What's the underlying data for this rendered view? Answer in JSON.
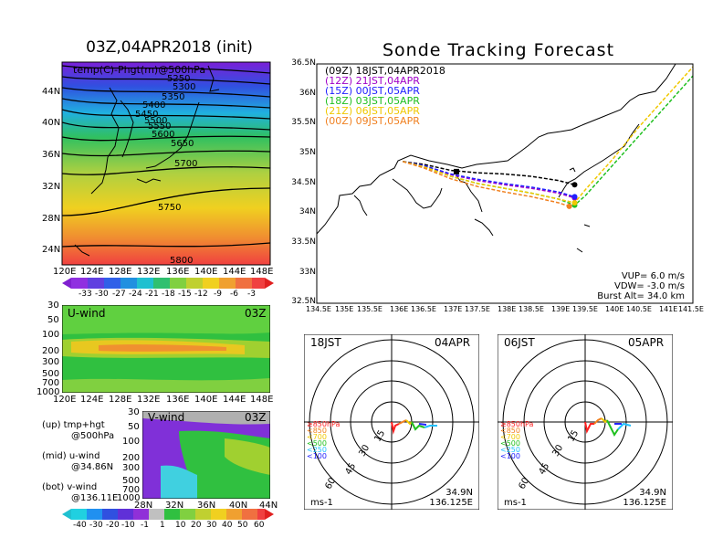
{
  "left_panel": {
    "title": "03Z,04APR2018 (init)",
    "map_label": "temp(C)-Phgt(m)@500hPa",
    "lat_ticks": [
      "44N",
      "40N",
      "36N",
      "32N",
      "28N",
      "24N"
    ],
    "lon_ticks": [
      "120E",
      "124E",
      "128E",
      "132E",
      "136E",
      "140E",
      "144E",
      "148E"
    ],
    "contour_labels": [
      "5250",
      "5300",
      "5350",
      "5400",
      "5450",
      "5500",
      "5550",
      "5600",
      "5650",
      "5700",
      "5750",
      "5800"
    ],
    "temp_colorbar": [
      "-33",
      "-30",
      "-27",
      "-24",
      "-21",
      "-18",
      "-15",
      "-12",
      "-9",
      "-6",
      "-3"
    ],
    "uwind": {
      "label": "U-wind",
      "time": "03Z",
      "p_ticks": [
        "30",
        "50",
        "100",
        "200",
        "300",
        "500",
        "700",
        "1000"
      ],
      "lon_ticks": [
        "120E",
        "124E",
        "128E",
        "132E",
        "136E",
        "140E",
        "144E",
        "148E"
      ]
    },
    "vwind": {
      "label": "V-wind",
      "time": "03Z",
      "p_ticks": [
        "30",
        "50",
        "100",
        "200",
        "300",
        "500",
        "700",
        "1000"
      ],
      "lat_ticks": [
        "28N",
        "32N",
        "36N",
        "40N",
        "44N"
      ]
    },
    "legend_lines": [
      "(up)  tmp+hgt",
      "@500hPa",
      "(mid)  u-wind",
      "@34.86N",
      "(bot)  v-wind",
      "@136.11E"
    ],
    "wind_colorbar": [
      "-40",
      "-30",
      "-20",
      "-10",
      "-1",
      "1",
      "10",
      "20",
      "30",
      "40",
      "50",
      "60"
    ]
  },
  "right_panel": {
    "title": "Sonde Tracking Forecast",
    "legend": [
      {
        "code": "(09Z)",
        "text": "18JST,04APR2018",
        "color": "#000000"
      },
      {
        "code": "(12Z)",
        "text": "21JST,04APR",
        "color": "#a000c8"
      },
      {
        "code": "(15Z)",
        "text": "00JST,05APR",
        "color": "#2020ff"
      },
      {
        "code": "(18Z)",
        "text": "03JST,05APR",
        "color": "#20c020"
      },
      {
        "code": "(21Z)",
        "text": "06JST,05APR",
        "color": "#f0c800"
      },
      {
        "code": "(00Z)",
        "text": "09JST,05APR",
        "color": "#f08020"
      }
    ],
    "lat_ticks": [
      "36.5N",
      "36N",
      "35.5N",
      "35N",
      "34.5N",
      "34N",
      "33.5N",
      "33N",
      "32.5N"
    ],
    "lon_ticks": [
      "134.5E",
      "135E",
      "135.5E",
      "136E",
      "136.5E",
      "137E",
      "137.5E",
      "138E",
      "138.5E",
      "139E",
      "139.5E",
      "140E",
      "140.5E",
      "141E",
      "141.5E"
    ],
    "params": [
      "VUP=  6.0  m/s",
      "VDW= -3.0  m/s",
      "Burst Alt=  34.0  km"
    ]
  },
  "hodographs": [
    {
      "time": "18JST",
      "date": "04APR",
      "ring_labels": [
        "15",
        "30",
        "45",
        "60"
      ],
      "unit": "ms-1",
      "levels": [
        {
          "text": "≥850hPa",
          "color": "#ff2020"
        },
        {
          "text": "<850",
          "color": "#f08020"
        },
        {
          "text": "<700",
          "color": "#f0c800"
        },
        {
          "text": "<500",
          "color": "#20c020"
        },
        {
          "text": "<250",
          "color": "#20c0ff"
        },
        {
          "text": "<100",
          "color": "#2020ff"
        }
      ],
      "lat": "34.9N",
      "lon": "136.125E"
    },
    {
      "time": "06JST",
      "date": "05APR",
      "ring_labels": [
        "15",
        "30",
        "45",
        "60"
      ],
      "unit": "ms-1",
      "levels": [
        {
          "text": "≥850hPa",
          "color": "#ff2020"
        },
        {
          "text": "<850",
          "color": "#f08020"
        },
        {
          "text": "<700",
          "color": "#f0c800"
        },
        {
          "text": "<500",
          "color": "#20c020"
        },
        {
          "text": "<250",
          "color": "#20c0ff"
        },
        {
          "text": "<100",
          "color": "#2020ff"
        }
      ],
      "lat": "34.9N",
      "lon": "136.125E"
    }
  ],
  "chart_data": [
    {
      "type": "heatmap",
      "title": "03Z,04APR2018 (init)",
      "variable": "temp(C)-Phgt(m)@500hPa",
      "xlabel": "",
      "ylabel": "",
      "xlim": [
        120,
        149
      ],
      "ylim": [
        22,
        48
      ],
      "contour_levels_m": [
        5250,
        5300,
        5350,
        5400,
        5450,
        5500,
        5550,
        5600,
        5650,
        5700,
        5750,
        5800
      ],
      "colorbar_c": [
        -33,
        -30,
        -27,
        -24,
        -21,
        -18,
        -15,
        -12,
        -9,
        -6,
        -3
      ]
    },
    {
      "type": "heatmap",
      "title": "U-wind 03Z",
      "xlim": [
        120,
        149
      ],
      "ylim": [
        1000,
        30
      ],
      "y_scale": "log"
    },
    {
      "type": "heatmap",
      "title": "V-wind 03Z",
      "xlim": [
        28,
        44
      ],
      "ylim": [
        1000,
        30
      ],
      "y_scale": "log",
      "colorbar_ms": [
        -40,
        -30,
        -20,
        -10,
        -1,
        1,
        10,
        20,
        30,
        40,
        50,
        60
      ]
    },
    {
      "type": "line",
      "title": "Sonde Tracking Forecast",
      "xlim": [
        134.5,
        141.5
      ],
      "ylim": [
        32.5,
        36.5
      ],
      "series": [
        {
          "name": "(09Z) 18JST,04APR2018",
          "color": "#000000",
          "x": [
            136.1,
            136.5,
            137.0,
            137.5,
            138.0,
            138.5,
            139.0,
            139.3
          ],
          "y": [
            34.87,
            34.82,
            34.72,
            34.68,
            34.66,
            34.62,
            34.55,
            34.48
          ]
        },
        {
          "name": "(12Z) 21JST,04APR",
          "color": "#a000c8",
          "x": [
            136.1,
            136.5,
            137.0,
            137.5,
            138.0,
            138.5,
            139.0,
            139.3
          ],
          "y": [
            34.87,
            34.8,
            34.65,
            34.55,
            34.48,
            34.42,
            34.34,
            34.26
          ]
        },
        {
          "name": "(15Z) 00JST,05APR",
          "color": "#2020ff",
          "x": [
            136.1,
            136.5,
            137.0,
            137.5,
            138.0,
            138.5,
            139.0,
            139.3
          ],
          "y": [
            34.87,
            34.8,
            34.66,
            34.57,
            34.5,
            34.44,
            34.36,
            34.28
          ]
        },
        {
          "name": "(18Z) 03JST,05APR",
          "color": "#20c020",
          "x": [
            136.1,
            136.5,
            137.0,
            137.5,
            138.0,
            138.5,
            139.0,
            139.3,
            139.5,
            140.0,
            140.5,
            141.0,
            141.5
          ],
          "y": [
            34.87,
            34.78,
            34.62,
            34.5,
            34.42,
            34.34,
            34.24,
            34.14,
            34.3,
            34.8,
            35.3,
            35.8,
            36.3
          ]
        },
        {
          "name": "(21Z) 06JST,05APR",
          "color": "#f0c800",
          "x": [
            136.1,
            136.5,
            137.0,
            137.5,
            138.0,
            138.5,
            139.0,
            139.3,
            139.5,
            140.0,
            140.5,
            141.0,
            141.5
          ],
          "y": [
            34.87,
            34.78,
            34.62,
            34.5,
            34.42,
            34.34,
            34.24,
            34.18,
            34.4,
            34.9,
            35.45,
            35.95,
            36.45
          ]
        },
        {
          "name": "(00Z) 09JST,05APR",
          "color": "#f08020",
          "x": [
            136.1,
            136.5,
            137.0,
            137.5,
            138.0,
            138.5,
            139.0,
            139.2
          ],
          "y": [
            34.87,
            34.76,
            34.58,
            34.45,
            34.36,
            34.28,
            34.18,
            34.12
          ]
        }
      ]
    }
  ]
}
